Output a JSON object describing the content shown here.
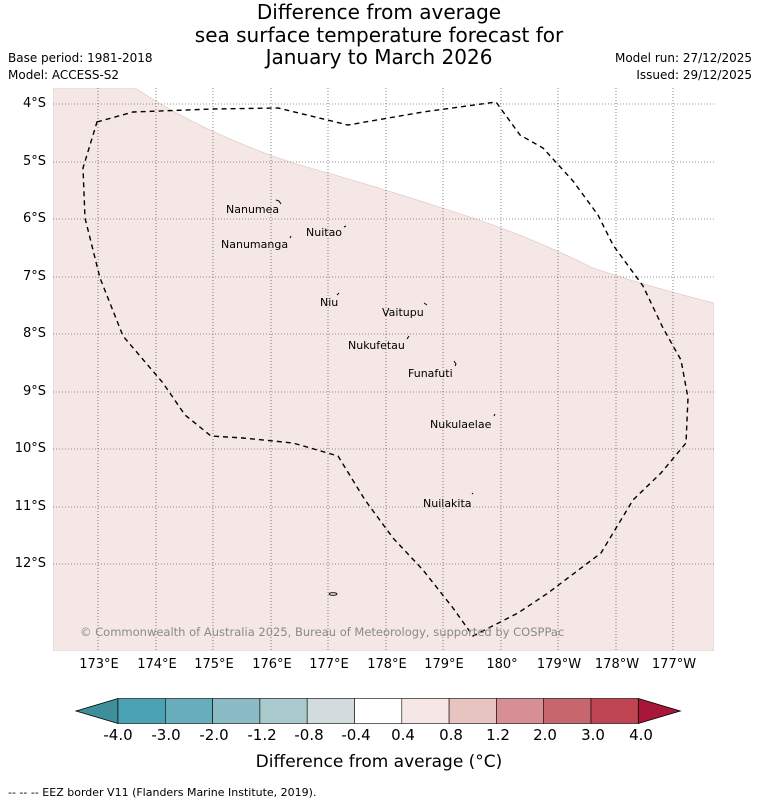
{
  "title": {
    "line1": "Difference from average",
    "line2": "sea surface temperature forecast for",
    "line3": "January to March 2026"
  },
  "meta": {
    "base_period": "Base period: 1981-2018",
    "model": "Model: ACCESS-S2",
    "model_run": "Model run: 27/12/2025",
    "issued": "Issued: 29/12/2025"
  },
  "map": {
    "lat_labels": [
      "4°S",
      "5°S",
      "6°S",
      "7°S",
      "8°S",
      "9°S",
      "10°S",
      "11°S",
      "12°S"
    ],
    "lon_labels": [
      "173°E",
      "174°E",
      "175°E",
      "176°E",
      "177°E",
      "178°E",
      "179°E",
      "180°",
      "179°W",
      "178°W",
      "177°W"
    ],
    "islands": [
      {
        "name": "Nanumea"
      },
      {
        "name": "Nuitao"
      },
      {
        "name": "Nanumanga"
      },
      {
        "name": "Niu"
      },
      {
        "name": "Vaitupu"
      },
      {
        "name": "Nukufetau"
      },
      {
        "name": "Funafuti"
      },
      {
        "name": "Nukulaelae"
      },
      {
        "name": "Nuilakita"
      }
    ],
    "copyright": "© Commonwealth of Australia 2025, Bureau of Meteorology, supported by COSPPac",
    "anomaly_fill_color": "#f5e7e5",
    "neutral_color": "#ffffff"
  },
  "colorbar": {
    "ticks": [
      "-4.0",
      "-3.0",
      "-2.0",
      "-1.2",
      "-0.8",
      "-0.4",
      "0.4",
      "0.8",
      "1.2",
      "2.0",
      "3.0",
      "4.0"
    ],
    "colors": [
      "#3d8f9c",
      "#4aa2b4",
      "#68adbb",
      "#8bbcc6",
      "#a9c9cc",
      "#d2dbdd",
      "#ffffff",
      "#f5e7e5",
      "#e8c4c1",
      "#d78f95",
      "#c8666e",
      "#bf4553",
      "#a8173a"
    ],
    "label": "Difference from average (°C)"
  },
  "footnote": "--  --  -- EEZ border V11 (Flanders Marine Institute, 2019)."
}
